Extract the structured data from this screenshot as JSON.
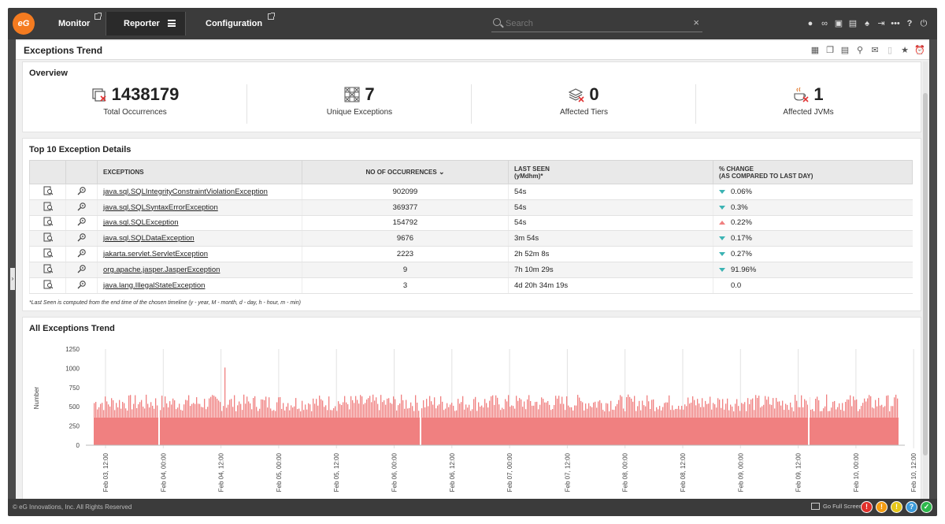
{
  "nav": {
    "logo_text": "eG",
    "tabs": [
      {
        "label": "Monitor"
      },
      {
        "label": "Reporter"
      },
      {
        "label": "Configuration"
      }
    ],
    "search_placeholder": "Search",
    "search_clear": "×",
    "icons": [
      "user-icon",
      "link-icon",
      "dashboard-icon",
      "archive-icon",
      "bell-icon",
      "logout-icon",
      "more-icon",
      "help-icon",
      "power-icon"
    ]
  },
  "page": {
    "title": "Exceptions Trend",
    "tools": [
      "report-icon",
      "clone-icon",
      "pdf-icon",
      "search-report-icon",
      "mail-icon",
      "export-icon",
      "favorite-icon",
      "alarm-icon"
    ]
  },
  "overview": {
    "title": "Overview",
    "stats": [
      {
        "value": "1438179",
        "label": "Total Occurrences"
      },
      {
        "value": "7",
        "label": "Unique Exceptions"
      },
      {
        "value": "0",
        "label": "Affected Tiers"
      },
      {
        "value": "1",
        "label": "Affected JVMs"
      }
    ]
  },
  "details": {
    "title": "Top 10 Exception Details",
    "columns": {
      "exceptions": "EXCEPTIONS",
      "occurrences": "NO OF OCCURRENCES",
      "last_seen_1": "LAST SEEN",
      "last_seen_2": "(yMdhm)*",
      "change_1": "% CHANGE",
      "change_2": "(AS COMPARED TO LAST DAY)"
    },
    "rows": [
      {
        "exception": "java.sql.SQLIntegrityConstraintViolationException",
        "occurrences": "902099",
        "last_seen": "54s",
        "change": "0.06%",
        "trend": "down"
      },
      {
        "exception": "java.sql.SQLSyntaxErrorException",
        "occurrences": "369377",
        "last_seen": "54s",
        "change": "0.3%",
        "trend": "down"
      },
      {
        "exception": "java.sql.SQLException",
        "occurrences": "154792",
        "last_seen": "54s",
        "change": "0.22%",
        "trend": "up"
      },
      {
        "exception": "java.sql.SQLDataException",
        "occurrences": "9676",
        "last_seen": "3m 54s",
        "change": "0.17%",
        "trend": "down"
      },
      {
        "exception": "jakarta.servlet.ServletException",
        "occurrences": "2223",
        "last_seen": "2h 52m 8s",
        "change": "0.27%",
        "trend": "down"
      },
      {
        "exception": "org.apache.jasper.JasperException",
        "occurrences": "9",
        "last_seen": "7h 10m 29s",
        "change": "91.96%",
        "trend": "down"
      },
      {
        "exception": "java.lang.IllegalStateException",
        "occurrences": "3",
        "last_seen": "4d 20h 34m 19s",
        "change": "0.0",
        "trend": "none"
      }
    ],
    "footnote": "*Last Seen is computed from the end time of the chosen timeline (y - year, M - month, d - day, h - hour, m - min)"
  },
  "trend": {
    "title": "All Exceptions Trend"
  },
  "chart_data": {
    "type": "bar",
    "title": "All Exceptions Trend",
    "xlabel": "",
    "ylabel": "Number",
    "ylim": [
      0,
      1250
    ],
    "yticks": [
      0,
      250,
      500,
      750,
      1000,
      1250
    ],
    "x_tick_labels": [
      "Feb 03, 12:00",
      "Feb 04, 00:00",
      "Feb 04, 12:00",
      "Feb 05, 00:00",
      "Feb 05, 12:00",
      "Feb 06, 00:00",
      "Feb 06, 12:00",
      "Feb 07, 00:00",
      "Feb 07, 12:00",
      "Feb 08, 00:00",
      "Feb 08, 12:00",
      "Feb 09, 00:00",
      "Feb 09, 12:00",
      "Feb 10, 00:00",
      "Feb 10, 12:00"
    ],
    "baseline": 360,
    "typical_peak": 580,
    "max_peak": 1010,
    "series_color": "#f08080",
    "grid": true
  },
  "footer": {
    "copyright": "© eG Innovations, Inc. All Rights Reserved",
    "fullscreen": "Go Full Screen",
    "status": [
      "!",
      "!",
      "!",
      "?",
      "✓"
    ],
    "status_colors": [
      "#e0302a",
      "#f39c12",
      "#e6c619",
      "#3b9ad9",
      "#2eb84b"
    ]
  },
  "side_handle": "›"
}
